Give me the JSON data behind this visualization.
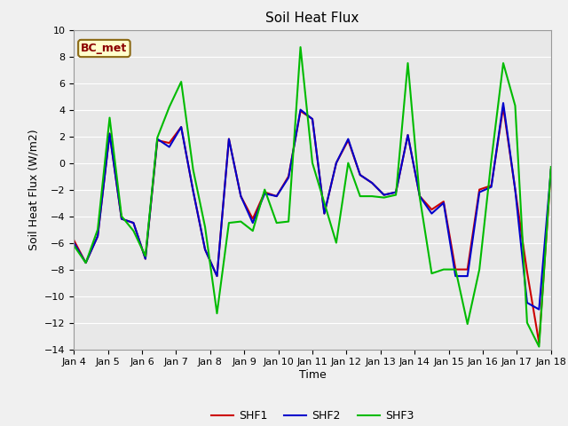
{
  "title": "Soil Heat Flux",
  "xlabel": "Time",
  "ylabel": "Soil Heat Flux (W/m2)",
  "fig_facecolor": "#f0f0f0",
  "plot_facecolor": "#e8e8e8",
  "ylim": [
    -14,
    10
  ],
  "xtick_labels": [
    "Jan 4",
    "Jan 5",
    "Jan 6",
    "Jan 7",
    "Jan 8",
    "Jan 9",
    "Jan 10",
    "Jan 11",
    "Jan 12",
    "Jan 13",
    "Jan 14",
    "Jan 15",
    "Jan 16",
    "Jan 17",
    "Jan 18"
  ],
  "annotation_text": "BC_met",
  "annotation_color": "#8B0000",
  "annotation_bg": "#ffffcc",
  "annotation_edge": "#8B6914",
  "SHF1": [
    -5.8,
    -7.5,
    -5.5,
    2.2,
    -4.2,
    -4.5,
    -7.2,
    1.7,
    1.5,
    2.7,
    -2.1,
    -6.5,
    -8.5,
    1.8,
    -2.5,
    -4.2,
    -2.2,
    -2.5,
    -1.0,
    3.9,
    3.3,
    -3.8,
    0.0,
    1.7,
    -0.9,
    -1.5,
    -2.4,
    -2.2,
    2.1,
    -2.5,
    -3.5,
    -2.9,
    -8.0,
    -8.0,
    -2.0,
    -1.7,
    4.2,
    -2.0,
    -8.2,
    -13.5,
    -0.5
  ],
  "SHF2": [
    -6.0,
    -7.5,
    -5.5,
    2.2,
    -4.2,
    -4.5,
    -7.2,
    1.8,
    1.2,
    2.7,
    -2.1,
    -6.5,
    -8.5,
    1.8,
    -2.5,
    -4.5,
    -2.3,
    -2.5,
    -1.1,
    4.0,
    3.3,
    -3.8,
    0.0,
    1.8,
    -0.9,
    -1.5,
    -2.4,
    -2.2,
    2.1,
    -2.5,
    -3.8,
    -3.0,
    -8.5,
    -8.5,
    -2.2,
    -1.8,
    4.5,
    -2.0,
    -10.5,
    -11.0,
    -0.5
  ],
  "SHF3": [
    -6.2,
    -7.5,
    -5.0,
    3.4,
    -4.0,
    -5.1,
    -7.0,
    1.9,
    4.2,
    6.1,
    -0.5,
    -4.8,
    -11.3,
    -4.5,
    -4.4,
    -5.1,
    -2.0,
    -4.5,
    -4.4,
    8.7,
    0.0,
    -3.0,
    -6.0,
    0.0,
    -2.5,
    -2.5,
    -2.6,
    -2.4,
    7.5,
    -2.6,
    -8.3,
    -8.0,
    -8.0,
    -12.1,
    -8.0,
    0.2,
    7.5,
    4.3,
    -12.0,
    -13.8,
    -0.3
  ],
  "shf1_color": "#cc0000",
  "shf2_color": "#0000cc",
  "shf3_color": "#00bb00",
  "linewidth": 1.5,
  "grid_color": "white",
  "grid_lw": 0.8,
  "tick_fontsize": 8,
  "label_fontsize": 9,
  "title_fontsize": 11
}
